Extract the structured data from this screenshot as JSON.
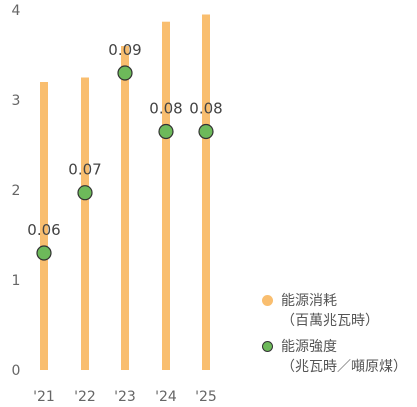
{
  "chart_data": {
    "type": "bar",
    "categories": [
      "'21",
      "'22",
      "'23",
      "'24",
      "'25"
    ],
    "ylim": [
      0,
      4
    ],
    "yticks": [
      "0",
      "1",
      "2",
      "3",
      "4"
    ],
    "series": [
      {
        "name": "能源消耗",
        "name_sub": "（百萬兆瓦時）",
        "kind": "bar",
        "color": "#F9BE6F",
        "values": [
          3.2,
          3.25,
          3.6,
          3.87,
          3.95
        ]
      },
      {
        "name": "能源強度",
        "name_sub": "（兆瓦時／噸原煤）",
        "kind": "point",
        "color": "#6DB95A",
        "stroke": "#333333",
        "values": [
          1.3,
          1.97,
          3.3,
          2.65,
          2.65
        ],
        "labels": [
          "0.06",
          "0.07",
          "0.09",
          "0.08",
          "0.08"
        ]
      }
    ],
    "legend_position": "right"
  }
}
